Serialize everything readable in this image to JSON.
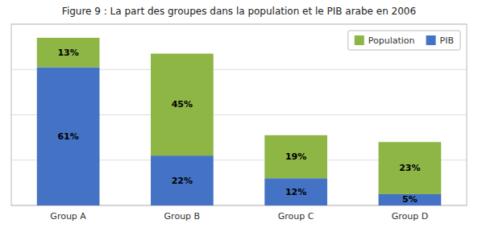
{
  "chart_data": {
    "type": "bar",
    "stacked": true,
    "title": "Figure 9 : La part des groupes dans la population et le PIB arabe en 2006",
    "categories": [
      "Group A",
      "Group B",
      "Group C",
      "Group D"
    ],
    "series": [
      {
        "name": "PIB",
        "color": "#4472C4",
        "values": [
          61,
          22,
          12,
          5
        ],
        "value_labels": [
          "61%",
          "22%",
          "12%",
          "5%"
        ]
      },
      {
        "name": "Population",
        "color": "#8DB645",
        "values": [
          13,
          45,
          19,
          23
        ],
        "value_labels": [
          "13%",
          "45%",
          "19%",
          "23%"
        ]
      }
    ],
    "ylim": [
      0,
      80
    ],
    "yticks": [
      0,
      20,
      40,
      60,
      80
    ],
    "grid": true,
    "legend": "upper right",
    "data_labels": true,
    "tick_labels": "x"
  }
}
